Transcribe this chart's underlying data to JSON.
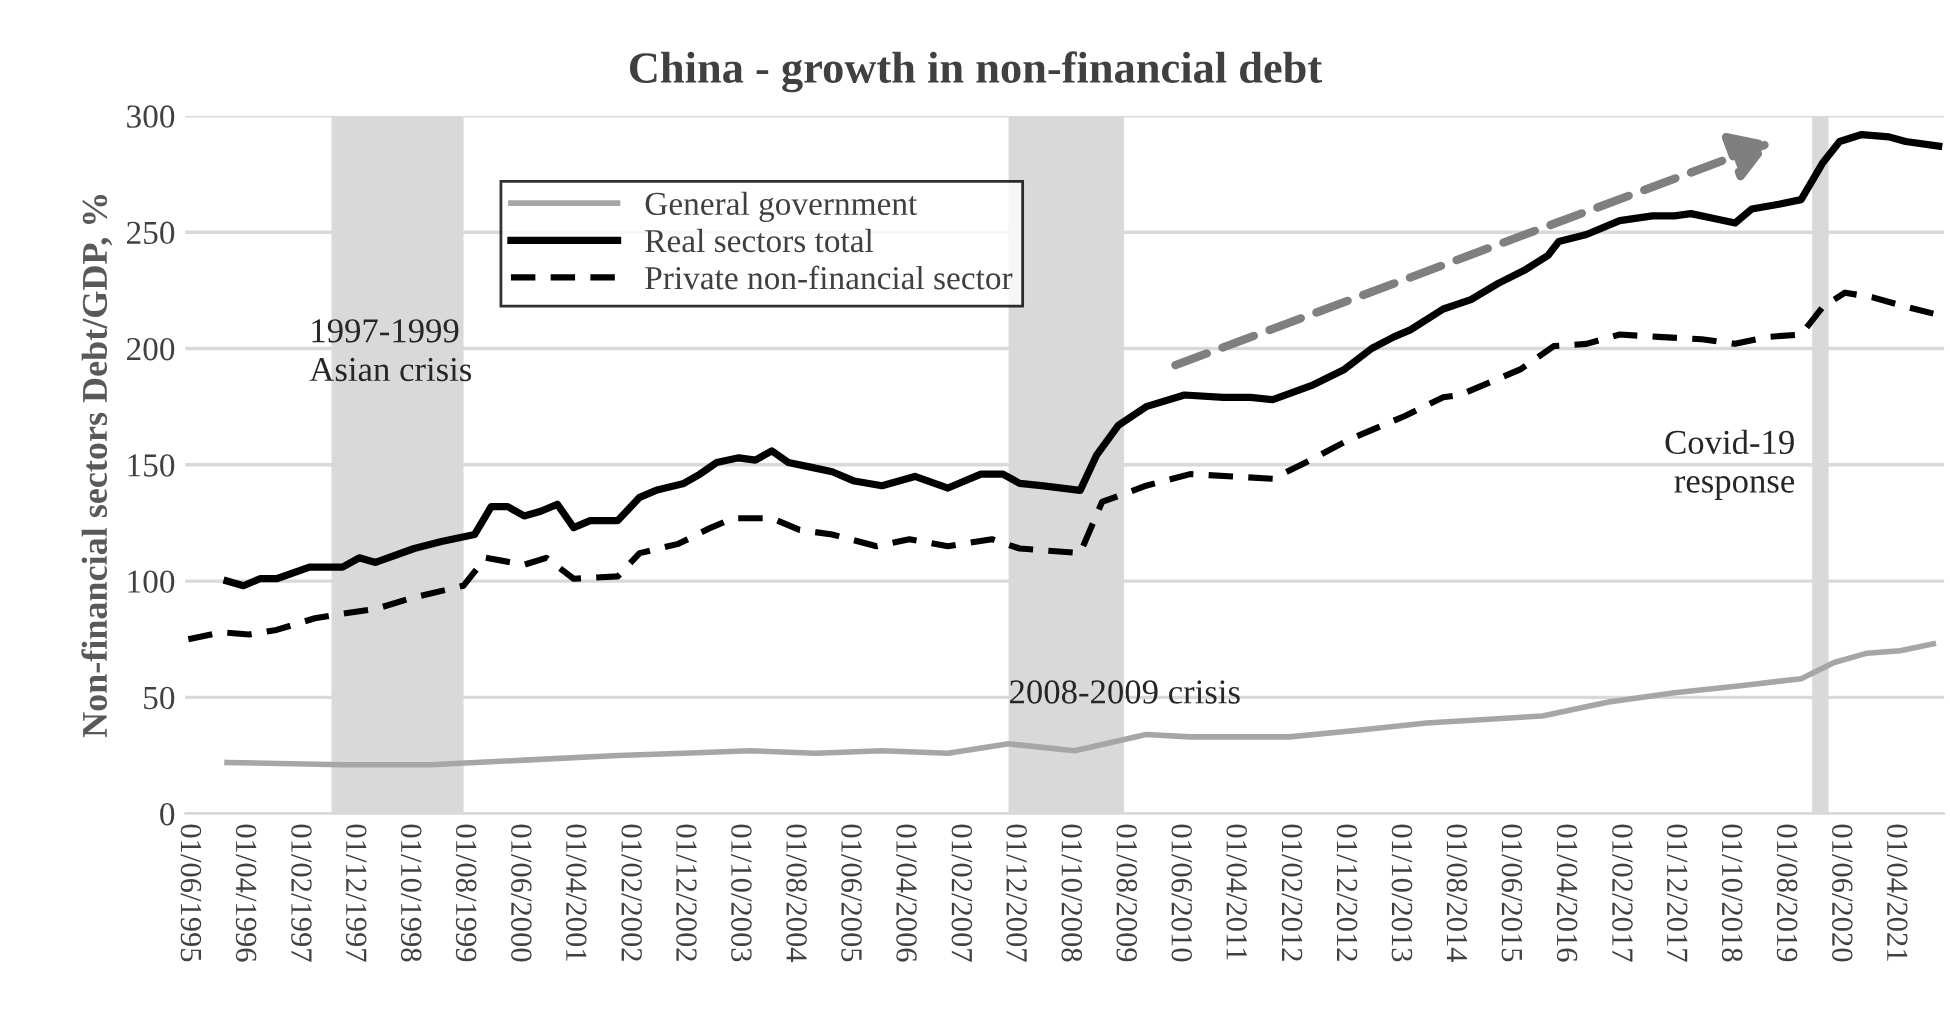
{
  "chart_data": {
    "type": "line",
    "title": "China - growth in non-financial debt",
    "ylabel": "Non-financial sectors Debt/GDP, %",
    "series": [
      {
        "name": "General government",
        "color": "#a6a6a6",
        "line_style": "solid",
        "x": [
          "1996-01",
          "1997-10",
          "1999-02",
          "2000-07",
          "2001-12",
          "2002-12",
          "2003-12",
          "2004-12",
          "2005-12",
          "2006-12",
          "2007-11",
          "2008-11",
          "2009-12",
          "2010-08",
          "2012-02",
          "2013-03",
          "2014-03",
          "2015-12",
          "2016-12",
          "2017-12",
          "2018-12",
          "2019-11",
          "2020-05",
          "2020-11",
          "2021-05",
          "2021-11"
        ],
        "values": [
          22,
          21,
          21,
          23,
          25,
          26,
          27,
          26,
          27,
          26,
          30,
          27,
          34,
          33,
          33,
          36,
          39,
          42,
          48,
          52,
          55,
          58,
          65,
          69,
          70,
          73
        ]
      },
      {
        "name": "Real sectors total",
        "color": "#000000",
        "line_style": "solid",
        "x": [
          "1996-01",
          "1996-04",
          "1996-07",
          "1996-10",
          "1997-04",
          "1997-10",
          "1998-01",
          "1998-04",
          "1998-11",
          "1999-04",
          "1999-10",
          "2000-01",
          "2000-04",
          "2000-07",
          "2000-10",
          "2001-01",
          "2001-04",
          "2001-07",
          "2001-12",
          "2002-04",
          "2002-07",
          "2002-12",
          "2003-03",
          "2003-06",
          "2003-10",
          "2004-01",
          "2004-04",
          "2004-07",
          "2004-11",
          "2005-03",
          "2005-07",
          "2005-12",
          "2006-06",
          "2006-12",
          "2007-06",
          "2007-10",
          "2008-01",
          "2008-05",
          "2008-12",
          "2009-03",
          "2009-07",
          "2009-12",
          "2010-07",
          "2011-02",
          "2011-07",
          "2011-11",
          "2012-06",
          "2012-12",
          "2013-05",
          "2013-09",
          "2013-12",
          "2014-06",
          "2014-11",
          "2015-04",
          "2015-09",
          "2016-01",
          "2016-03",
          "2016-08",
          "2017-02",
          "2017-08",
          "2017-12",
          "2018-03",
          "2018-07",
          "2018-11",
          "2019-02",
          "2019-07",
          "2019-11",
          "2020-03",
          "2020-06",
          "2020-10",
          "2021-03",
          "2021-06",
          "2021-12"
        ],
        "values": [
          100,
          98,
          101,
          101,
          106,
          106,
          110,
          108,
          114,
          117,
          120,
          132,
          132,
          128,
          130,
          133,
          123,
          126,
          126,
          136,
          139,
          142,
          146,
          151,
          153,
          152,
          156,
          151,
          149,
          147,
          143,
          141,
          145,
          140,
          146,
          146,
          142,
          141,
          139,
          154,
          167,
          175,
          180,
          179,
          179,
          178,
          184,
          191,
          200,
          205,
          208,
          217,
          221,
          228,
          234,
          240,
          246,
          249,
          255,
          257,
          257,
          258,
          256,
          254,
          260,
          262,
          264,
          280,
          289,
          292,
          291,
          289,
          287
        ]
      },
      {
        "name": "Private non-financial sector",
        "color": "#000000",
        "line_style": "dashed",
        "x": [
          "1995-06",
          "1995-12",
          "1996-05",
          "1996-10",
          "1997-05",
          "1997-10",
          "1998-04",
          "1998-11",
          "1999-08",
          "1999-12",
          "2000-07",
          "2000-11",
          "2001-04",
          "2001-12",
          "2002-04",
          "2002-11",
          "2003-05",
          "2003-09",
          "2004-04",
          "2004-09",
          "2005-03",
          "2005-11",
          "2006-05",
          "2006-12",
          "2007-08",
          "2008-01",
          "2008-12",
          "2009-04",
          "2009-12",
          "2010-08",
          "2011-11",
          "2012-05",
          "2013-01",
          "2013-11",
          "2014-06",
          "2014-09",
          "2015-08",
          "2016-02",
          "2016-08",
          "2017-02",
          "2017-09",
          "2018-05",
          "2018-11",
          "2019-05",
          "2019-11",
          "2020-03",
          "2020-07",
          "2020-12",
          "2021-06",
          "2021-11"
        ],
        "values": [
          75,
          78,
          77,
          79,
          84,
          86,
          88,
          93,
          98,
          110,
          107,
          110,
          101,
          102,
          112,
          116,
          123,
          127,
          127,
          122,
          120,
          115,
          118,
          115,
          118,
          114,
          112,
          134,
          141,
          146,
          144,
          151,
          161,
          171,
          179,
          180,
          191,
          201,
          202,
          206,
          205,
          204,
          202,
          205,
          206,
          218,
          224,
          222,
          218,
          215
        ]
      }
    ],
    "bands": [
      {
        "axis": "x",
        "from": "1997-08",
        "to": "1999-08",
        "label": "1997-1999\nAsian crisis",
        "color": "#d9d9d9"
      },
      {
        "axis": "x",
        "from": "2007-11",
        "to": "2009-08",
        "label": "2008-2009 crisis",
        "color": "#d9d9d9"
      },
      {
        "axis": "x",
        "from": "2020-01",
        "to": "2020-04",
        "label": "Covid-19\nresponse",
        "color": "#d9d9d9"
      }
    ],
    "xlim": [
      "1995-05-15",
      "2021-12-31"
    ],
    "xticks": [
      {
        "value": "1995-06-01",
        "label": "01/06/1995"
      },
      {
        "value": "1996-04-01",
        "label": "01/04/1996"
      },
      {
        "value": "1997-02-01",
        "label": "01/02/1997"
      },
      {
        "value": "1997-12-01",
        "label": "01/12/1997"
      },
      {
        "value": "1998-10-01",
        "label": "01/10/1998"
      },
      {
        "value": "1999-08-01",
        "label": "01/08/1999"
      },
      {
        "value": "2000-06-01",
        "label": "01/06/2000"
      },
      {
        "value": "2001-04-01",
        "label": "01/04/2001"
      },
      {
        "value": "2002-02-01",
        "label": "01/02/2002"
      },
      {
        "value": "2002-12-01",
        "label": "01/12/2002"
      },
      {
        "value": "2003-10-01",
        "label": "01/10/2003"
      },
      {
        "value": "2004-08-01",
        "label": "01/08/2004"
      },
      {
        "value": "2005-06-01",
        "label": "01/06/2005"
      },
      {
        "value": "2006-04-01",
        "label": "01/04/2006"
      },
      {
        "value": "2007-02-01",
        "label": "01/02/2007"
      },
      {
        "value": "2007-12-01",
        "label": "01/12/2007"
      },
      {
        "value": "2008-10-01",
        "label": "01/10/2008"
      },
      {
        "value": "2009-08-01",
        "label": "01/08/2009"
      },
      {
        "value": "2010-06-01",
        "label": "01/06/2010"
      },
      {
        "value": "2011-04-01",
        "label": "01/04/2011"
      },
      {
        "value": "2012-02-01",
        "label": "01/02/2012"
      },
      {
        "value": "2012-12-01",
        "label": "01/12/2012"
      },
      {
        "value": "2013-10-01",
        "label": "01/10/2013"
      },
      {
        "value": "2014-08-01",
        "label": "01/08/2014"
      },
      {
        "value": "2015-06-01",
        "label": "01/06/2015"
      },
      {
        "value": "2016-04-01",
        "label": "01/04/2016"
      },
      {
        "value": "2017-02-01",
        "label": "01/02/2017"
      },
      {
        "value": "2017-12-01",
        "label": "01/12/2017"
      },
      {
        "value": "2018-10-01",
        "label": "01/10/2018"
      },
      {
        "value": "2019-08-01",
        "label": "01/08/2019"
      },
      {
        "value": "2020-06-01",
        "label": "01/06/2020"
      },
      {
        "value": "2021-04-01",
        "label": "01/04/2021"
      }
    ],
    "ylim": [
      0,
      300
    ],
    "yticks": [
      0,
      50,
      100,
      150,
      200,
      250,
      300
    ],
    "grid": "y",
    "legend": "top left",
    "marker": "none"
  }
}
